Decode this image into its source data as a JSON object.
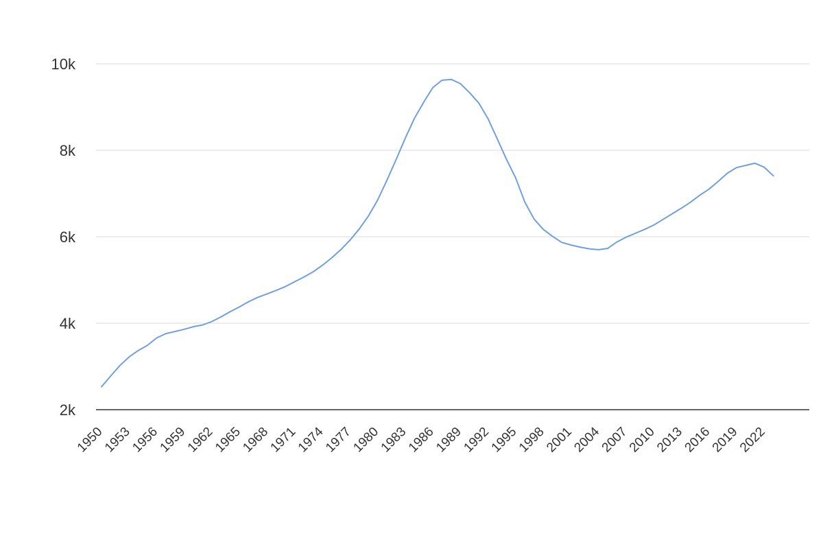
{
  "chart_data": {
    "type": "line",
    "title": "",
    "xlabel": "",
    "ylabel": "",
    "ylim": [
      2000,
      10000
    ],
    "y_ticks": [
      {
        "value": 2000,
        "label": "2k"
      },
      {
        "value": 4000,
        "label": "4k"
      },
      {
        "value": 6000,
        "label": "6k"
      },
      {
        "value": 8000,
        "label": "8k"
      },
      {
        "value": 10000,
        "label": "10k"
      }
    ],
    "x_tick_labels": [
      "1950",
      "1953",
      "1956",
      "1959",
      "1962",
      "1965",
      "1968",
      "1971",
      "1974",
      "1977",
      "1980",
      "1983",
      "1986",
      "1989",
      "1992",
      "1995",
      "1998",
      "2001",
      "2004",
      "2007",
      "2010",
      "2013",
      "2016",
      "2019",
      "2022"
    ],
    "grid": true,
    "legend": "none",
    "line_color": "#6f9fde",
    "x": [
      1950,
      1951,
      1952,
      1953,
      1954,
      1955,
      1956,
      1957,
      1958,
      1959,
      1960,
      1961,
      1962,
      1963,
      1964,
      1965,
      1966,
      1967,
      1968,
      1969,
      1970,
      1971,
      1972,
      1973,
      1974,
      1975,
      1976,
      1977,
      1978,
      1979,
      1980,
      1981,
      1982,
      1983,
      1984,
      1985,
      1986,
      1987,
      1988,
      1989,
      1990,
      1991,
      1992,
      1993,
      1994,
      1995,
      1996,
      1997,
      1998,
      1999,
      2000,
      2001,
      2002,
      2003,
      2004,
      2005,
      2006,
      2007,
      2008,
      2009,
      2010,
      2011,
      2012,
      2013,
      2014,
      2015,
      2016,
      2017,
      2018,
      2019,
      2020,
      2021,
      2022,
      2023
    ],
    "series": [
      {
        "values": [
          2530,
          2780,
          3020,
          3220,
          3370,
          3490,
          3660,
          3760,
          3810,
          3860,
          3920,
          3960,
          4040,
          4150,
          4270,
          4380,
          4500,
          4600,
          4680,
          4760,
          4850,
          4960,
          5070,
          5190,
          5340,
          5510,
          5700,
          5920,
          6180,
          6480,
          6850,
          7300,
          7780,
          8280,
          8740,
          9110,
          9450,
          9620,
          9640,
          9540,
          9330,
          9090,
          8730,
          8260,
          7790,
          7360,
          6800,
          6410,
          6170,
          6010,
          5870,
          5810,
          5760,
          5720,
          5700,
          5730,
          5880,
          5990,
          6080,
          6170,
          6270,
          6400,
          6530,
          6660,
          6800,
          6960,
          7100,
          7280,
          7470,
          7600,
          7650,
          7700,
          7610,
          7410
        ]
      }
    ]
  }
}
